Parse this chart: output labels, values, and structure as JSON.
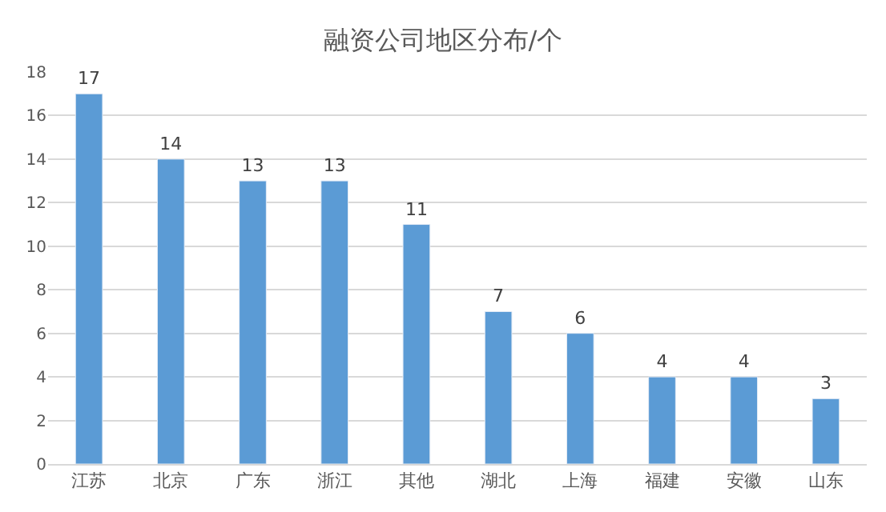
{
  "chart_data": {
    "type": "bar",
    "title": "融资公司地区分布/个",
    "categories": [
      "江苏",
      "北京",
      "广东",
      "浙江",
      "其他",
      "湖北",
      "上海",
      "福建",
      "安徽",
      "山东"
    ],
    "values": [
      17,
      14,
      13,
      13,
      11,
      7,
      6,
      4,
      4,
      3
    ],
    "color": "#5b9bd5",
    "ylim": [
      0,
      18
    ],
    "yticks": [
      0,
      2,
      4,
      6,
      8,
      10,
      12,
      14,
      16,
      18
    ],
    "grid": "y",
    "data_labels": true
  }
}
